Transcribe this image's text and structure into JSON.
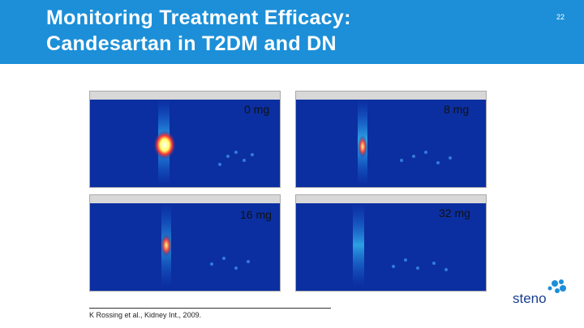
{
  "header": {
    "title_lines": [
      "Monitoring Treatment Efficacy:",
      "Candesartan in T2DM and DN"
    ],
    "page_number": "22"
  },
  "panels": [
    {
      "label": "0 mg"
    },
    {
      "label": "8 mg"
    },
    {
      "label": "16 mg"
    },
    {
      "label": "32 mg"
    }
  ],
  "reference": "K Rossing et al., Kidney Int., 2009.",
  "logo": "steno"
}
